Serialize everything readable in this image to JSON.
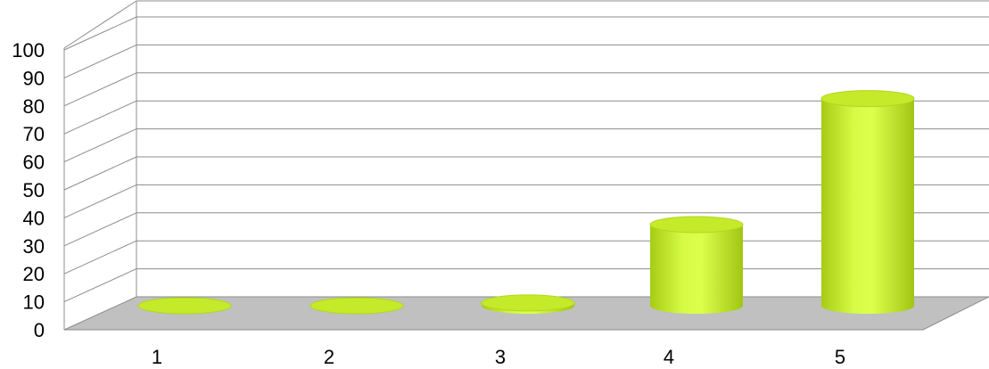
{
  "chart_data": {
    "type": "bar",
    "style": "3d-cylinder",
    "categories": [
      "1",
      "2",
      "3",
      "4",
      "5"
    ],
    "values": [
      0,
      0,
      1,
      29,
      74
    ],
    "ylim": [
      0,
      100
    ],
    "yticks": [
      0,
      10,
      20,
      30,
      40,
      50,
      60,
      70,
      80,
      90,
      100
    ],
    "title": "",
    "xlabel": "",
    "ylabel": "",
    "grid": true,
    "legend": "none",
    "colors": {
      "bar_light": "#dcff4a",
      "bar_dark": "#a6c814",
      "bar_top": "#c4ea2a",
      "floor": "#c0c0c0",
      "gridline": "#8c8c8c"
    }
  }
}
